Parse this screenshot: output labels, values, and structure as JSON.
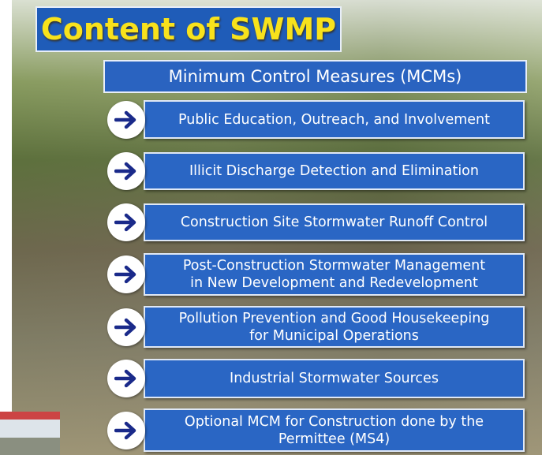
{
  "slide": {
    "title": "Content of SWMP",
    "subtitle": "Minimum Control Measures (MCMs)",
    "items": [
      {
        "lines": [
          "Public Education, Outreach, and Involvement"
        ]
      },
      {
        "lines": [
          "Illicit Discharge Detection and Elimination"
        ]
      },
      {
        "lines": [
          "Construction Site Stormwater Runoff Control"
        ]
      },
      {
        "lines": [
          "Post-Construction Stormwater Management",
          "in New Development and Redevelopment"
        ]
      },
      {
        "lines": [
          "Pollution Prevention and Good Housekeeping",
          "for Municipal Operations"
        ]
      },
      {
        "lines": [
          "Industrial Stormwater Sources"
        ]
      },
      {
        "lines": [
          "Optional MCM for Construction done by the",
          "Permittee (MS4)"
        ]
      }
    ]
  }
}
